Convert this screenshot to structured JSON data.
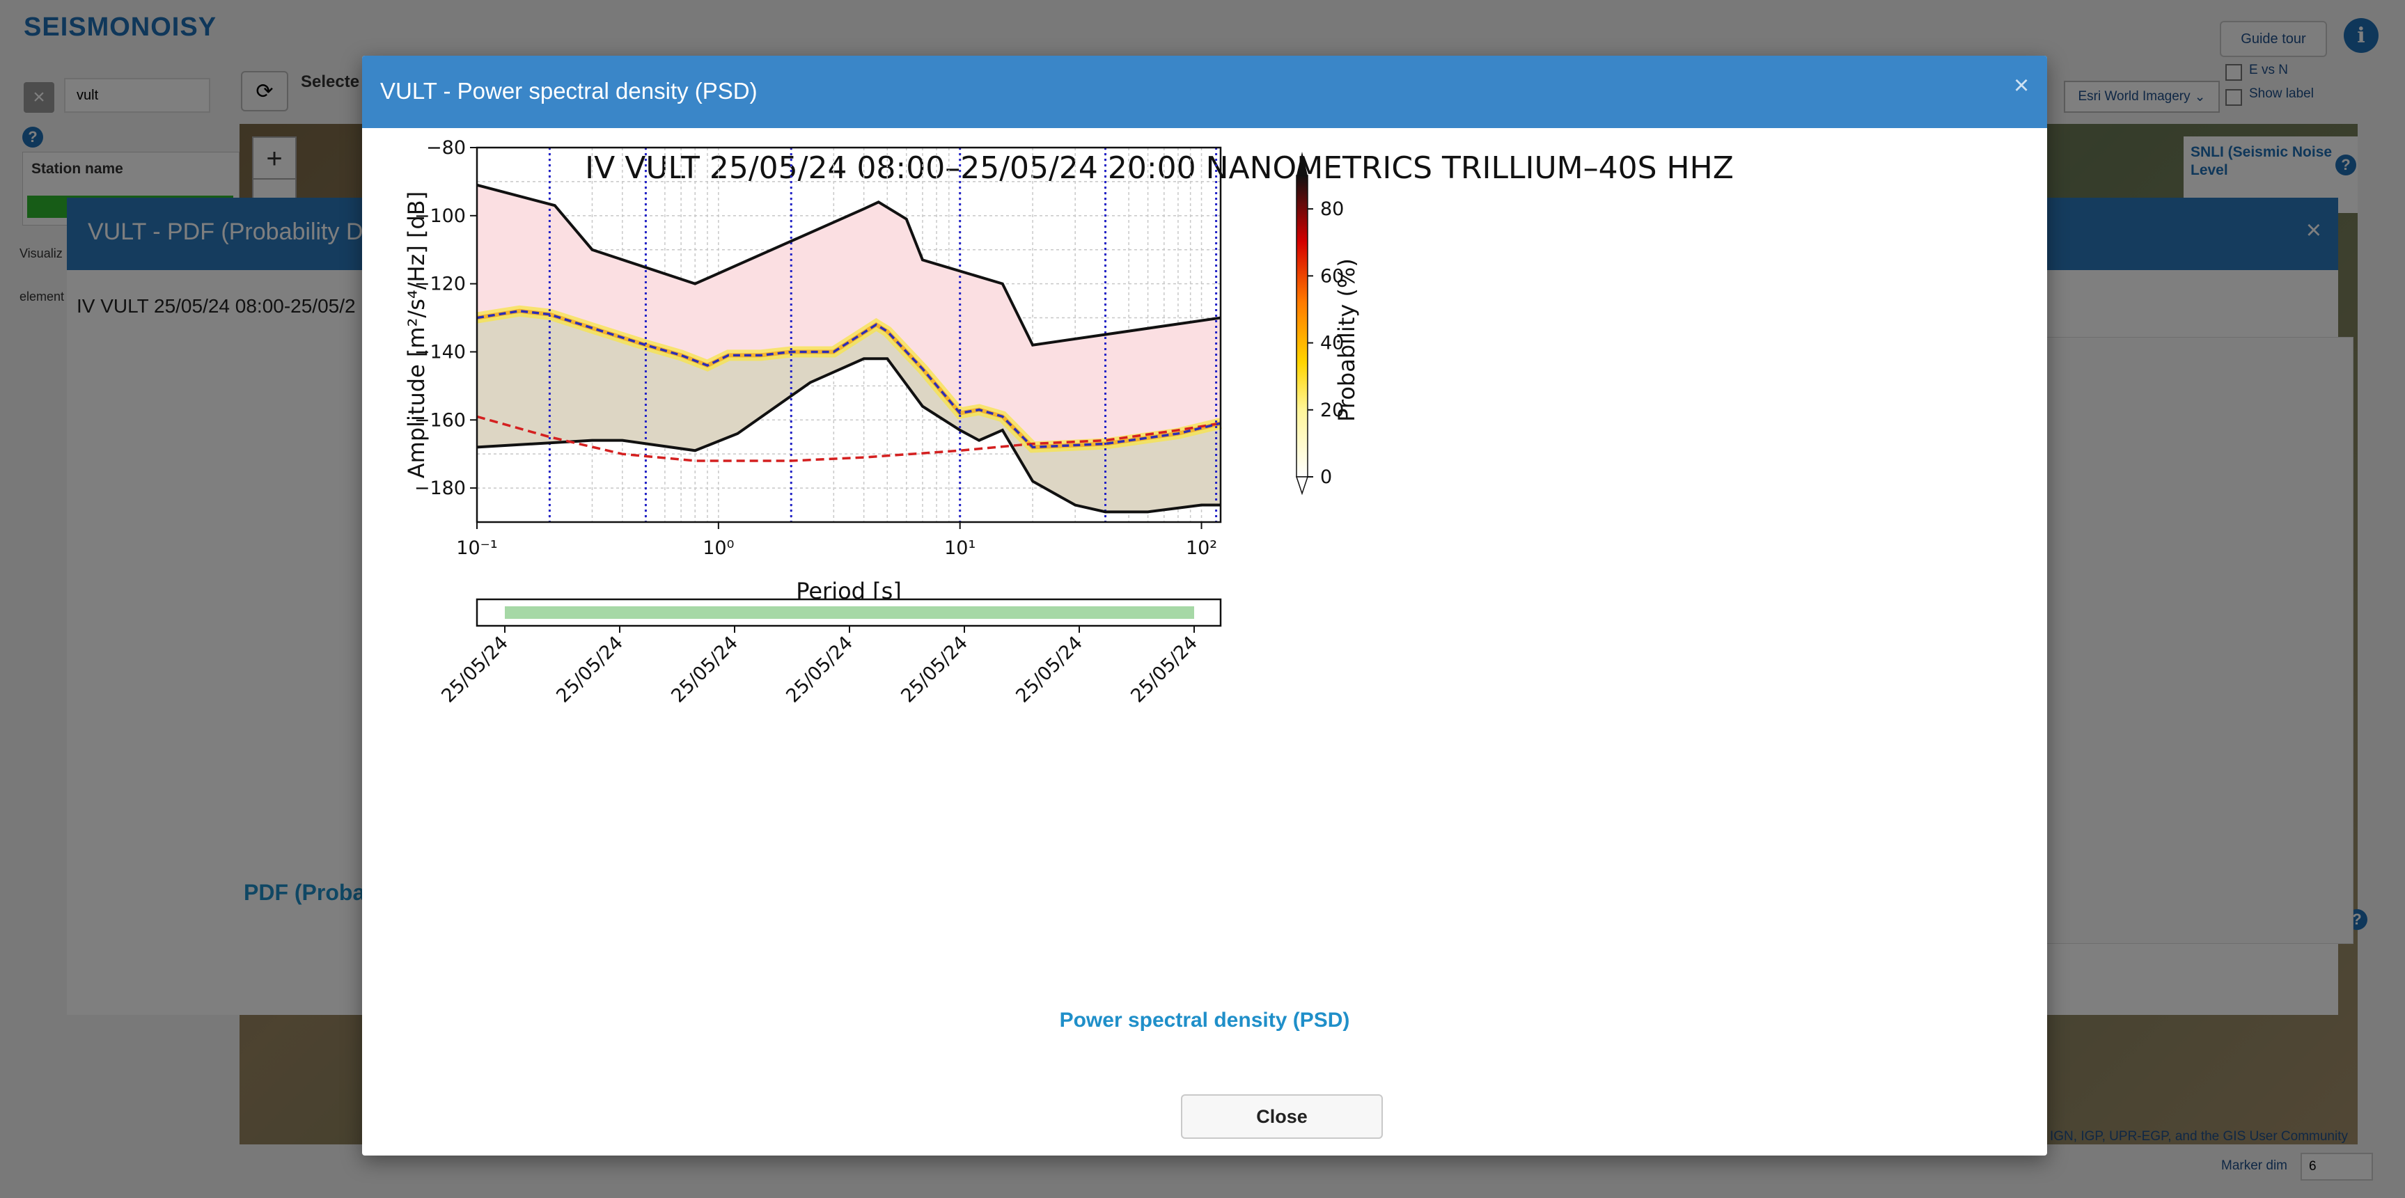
{
  "app": {
    "brand": "SEISMONOISY",
    "guide_tour": "Guide tour",
    "info": "i",
    "e_vs_n": "E vs N",
    "show_label": "Show label",
    "basemap": "Esri World Imagery",
    "search_value": "vult",
    "selected_label": "Selecte",
    "station_name_label": "Station name",
    "visualiz_text": "Visualiz",
    "element_text": "element",
    "snli_title": "SNLI (Seismic Noise Level",
    "attribution": "IGN, IGP, UPR-EGP, and the GIS User Community",
    "marker_dim_label": "Marker dim",
    "marker_dim_value": "6",
    "zoom_in": "+",
    "zoom_out": "−"
  },
  "pdf_modal": {
    "title": "VULT - PDF (Probability De",
    "chart_title": "IV VULT  25/05/24 08:00-25/05/2",
    "body_title": "PDF (Proba",
    "close": "×"
  },
  "modal": {
    "title": "VULT - Power spectral density (PSD)",
    "close_x": "×",
    "link": "Power spectral density (PSD)",
    "close_button": "Close"
  },
  "chart_data": {
    "type": "line",
    "title": "IV VULT  25/05/24 08:00–25/05/24 20:00 NANOMETRICS TRILLIUM–40S HHZ",
    "xlabel": "Period [s]",
    "ylabel": "Amplitude [m²/s⁴/Hz] [dB]",
    "xscale": "log",
    "xlim": [
      0.1,
      120
    ],
    "ylim": [
      -190,
      -80
    ],
    "xticks": [
      "10⁻¹",
      "10⁰",
      "10¹",
      "10²"
    ],
    "yticks": [
      -80,
      -100,
      -120,
      -140,
      -160,
      -180
    ],
    "grid": true,
    "colorbar": {
      "label": "Probability (%)",
      "ticks": [
        0,
        20,
        40,
        60,
        80
      ]
    },
    "series": [
      {
        "style": "black-line",
        "x": [
          0.1,
          0.21,
          0.3,
          0.8,
          4,
          4.6,
          6,
          7,
          15,
          20,
          120
        ],
        "y": [
          -91,
          -97,
          -110,
          -120,
          -98,
          -96,
          -101,
          -113,
          -120,
          -138,
          -130
        ]
      },
      {
        "style": "black-line",
        "x": [
          0.1,
          0.3,
          0.4,
          0.8,
          1.2,
          2.4,
          4,
          5,
          7,
          10,
          12,
          15,
          20,
          30,
          40,
          60,
          100,
          120
        ],
        "y": [
          -168,
          -166,
          -166,
          -169,
          -164,
          -149,
          -142,
          -142,
          -156,
          -163,
          -166,
          -163,
          -178,
          -185,
          -187,
          -187,
          -185,
          -185
        ]
      },
      {
        "style": "red-dashed",
        "x": [
          0.1,
          0.2,
          0.4,
          0.8,
          2,
          4,
          10,
          20,
          40,
          80,
          120
        ],
        "y": [
          -159,
          -165,
          -170,
          -172,
          -172,
          -171,
          -169,
          -167,
          -166,
          -163,
          -161
        ]
      },
      {
        "style": "blue-dashed-mode",
        "x": [
          0.1,
          0.15,
          0.2,
          0.3,
          0.5,
          0.7,
          0.9,
          1.1,
          1.5,
          2,
          3,
          4.5,
          5,
          7,
          10,
          12,
          15,
          20,
          40,
          80,
          120
        ],
        "y": [
          -130,
          -128,
          -129,
          -133,
          -138,
          -141,
          -144,
          -141,
          -141,
          -140,
          -140,
          -132,
          -134,
          -145,
          -158,
          -157,
          -159,
          -168,
          -167,
          -164,
          -161
        ]
      }
    ],
    "vertical_lines": [
      0.2,
      0.5,
      2,
      10,
      40,
      115
    ],
    "timeline": {
      "labels": [
        "25/05/24",
        "25/05/24",
        "25/05/24",
        "25/05/24",
        "25/05/24",
        "25/05/24",
        "25/05/24"
      ]
    }
  }
}
